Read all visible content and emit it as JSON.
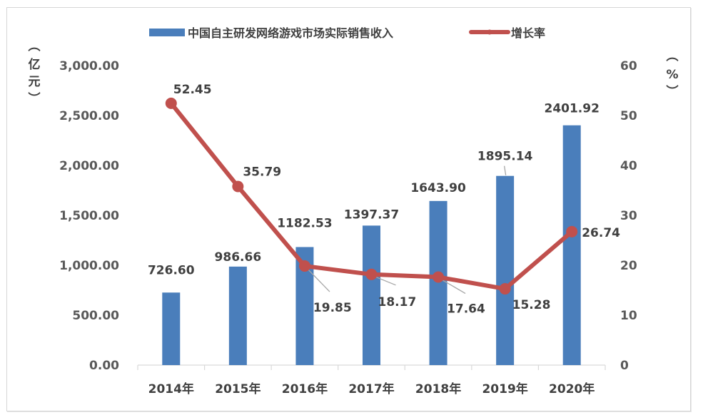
{
  "chart_data": {
    "type": "bar+line",
    "title": "",
    "categories": [
      "2014年",
      "2015年",
      "2016年",
      "2017年",
      "2018年",
      "2019年",
      "2020年"
    ],
    "series": [
      {
        "name": "中国自主研发网络游戏市场实际销售收入",
        "type": "bar",
        "axis": "left",
        "color": "#4a7ebb",
        "values": [
          726.6,
          986.66,
          1182.53,
          1397.37,
          1643.9,
          1895.14,
          2401.92
        ],
        "labels": [
          "726.60",
          "986.66",
          "1182.53",
          "1397.37",
          "1643.90",
          "1895.14",
          "2401.92"
        ]
      },
      {
        "name": "增长率",
        "type": "line",
        "axis": "right",
        "color": "#c0504d",
        "values": [
          52.45,
          35.79,
          19.85,
          18.17,
          17.64,
          15.28,
          26.74
        ],
        "labels": [
          "52.45",
          "35.79",
          "19.85",
          "18.17",
          "17.64",
          "15.28",
          "26.74"
        ]
      }
    ],
    "y_left": {
      "label": "（亿元）",
      "ylim": [
        0,
        3000
      ],
      "ticks": [
        "0.00",
        "500.00",
        "1,000.00",
        "1,500.00",
        "2,000.00",
        "2,500.00",
        "3,000.00"
      ]
    },
    "y_right": {
      "label": "（%）",
      "ylim": [
        0,
        60
      ],
      "ticks": [
        "0",
        "10",
        "20",
        "30",
        "40",
        "50",
        "60"
      ]
    },
    "legend_position": "top",
    "grid": false
  },
  "axis": {
    "left_unit": [
      "︵",
      "亿",
      "元",
      "︶"
    ],
    "right_unit": [
      "︵",
      "%",
      "︶"
    ]
  },
  "legend": {
    "bar_label": "中国自主研发网络游戏市场实际销售收入",
    "line_label": "增长率"
  }
}
